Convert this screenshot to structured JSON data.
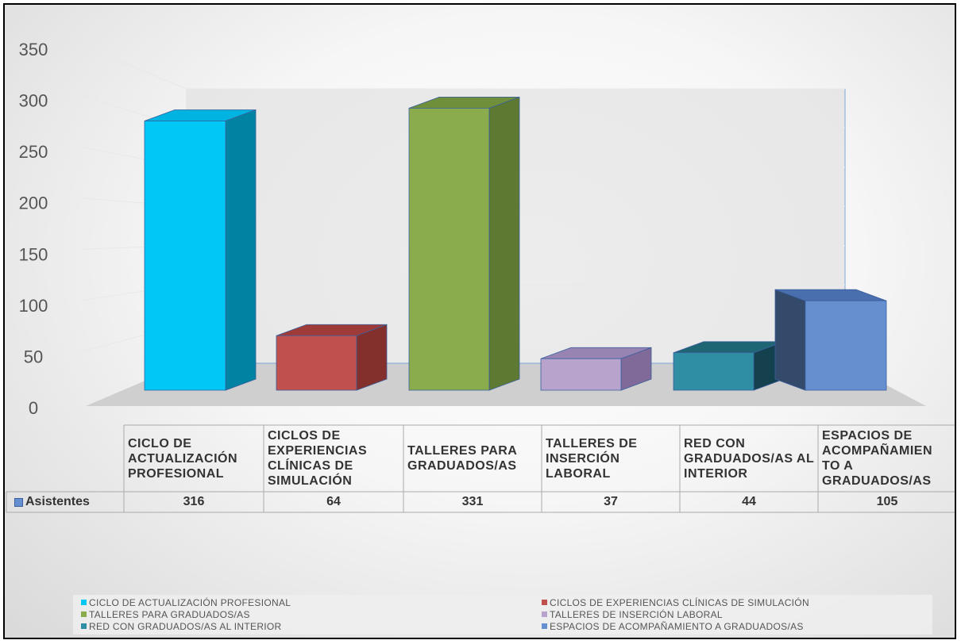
{
  "chart_data": {
    "type": "bar",
    "categories": [
      "CICLO DE ACTUALIZACIÓN PROFESIONAL",
      "CICLOS DE EXPERIENCIAS CLÍNICAS DE SIMULACIÓN",
      "TALLERES PARA GRADUADOS/AS",
      "TALLERES DE INSERCIÓN LABORAL",
      "RED CON GRADUADOS/AS AL INTERIOR",
      "ESPACIOS DE ACOMPAÑAMIENTO A GRADUADOS/AS"
    ],
    "series": [
      {
        "name": "Asistentes",
        "values": [
          316,
          64,
          331,
          37,
          44,
          105
        ]
      }
    ],
    "value_labels": [
      "316",
      "64",
      "331",
      "37",
      "44",
      "105"
    ],
    "y_ticks": [
      "0",
      "50",
      "100",
      "150",
      "200",
      "250",
      "300",
      "350"
    ],
    "ylim": [
      0,
      350
    ],
    "grid": true,
    "legend_position": "bottom",
    "legend": [
      "CICLO DE  ACTUALIZACIÓN PROFESIONAL",
      "CICLOS DE EXPERIENCIAS CLÍNICAS DE SIMULACIÓN",
      "TALLERES PARA GRADUADOS/AS",
      "TALLERES DE INSERCIÓN LABORAL",
      "RED CON GRADUADOS/AS AL INTERIOR",
      "ESPACIOS DE ACOMPAÑAMIENTO A GRADUADOS/AS"
    ],
    "colors": [
      "#00c8f6",
      "#c0504d",
      "#8aac4c",
      "#b7a3cc",
      "#2f8ea3",
      "#658fcf"
    ],
    "side_colors": [
      "#0083a3",
      "#832f2c",
      "#5e7a32",
      "#7f6a99",
      "#14414d",
      "#334a6b"
    ],
    "top_colors": [
      "#00b3e0",
      "#9e3b38",
      "#6f8f3b",
      "#9884b2",
      "#1f6675",
      "#4a6fae"
    ],
    "table_row_label": "Asistentes",
    "table_category_text": [
      "CICLO DE ACTUALIZACIÓN PROFESIONAL",
      "CICLOS DE EXPERIENCIAS CLÍNICAS DE SIMULACIÓN",
      "TALLERES PARA GRADUADOS/AS",
      "TALLERES DE INSERCIÓN LABORAL",
      "RED CON GRADUADOS/AS AL INTERIOR",
      "ESPACIOS DE ACOMPAÑAMIEN TO A GRADUADOS/AS"
    ]
  }
}
